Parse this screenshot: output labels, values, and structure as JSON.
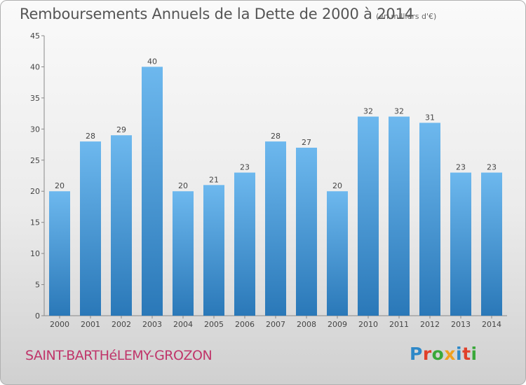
{
  "title": "Remboursements Annuels de la Dette de 2000 à 2014",
  "unit": "(en milliers d'€)",
  "commune": "SAINT-BARTHéLEMY-GROZON",
  "brand": {
    "text": "Proxiti",
    "colors": [
      "#2e88c8",
      "#e0402a",
      "#3aa83a",
      "#f0a020",
      "#2e88c8",
      "#e0402a",
      "#3aa83a"
    ]
  },
  "colors": {
    "bar_top": "#6db8ee",
    "bar_bottom": "#2a78b8",
    "commune": "#c0356a"
  },
  "chart_data": {
    "type": "bar",
    "title": "Remboursements Annuels de la Dette de 2000 à 2014",
    "xlabel": "",
    "ylabel": "",
    "categories": [
      "2000",
      "2001",
      "2002",
      "2003",
      "2004",
      "2005",
      "2006",
      "2007",
      "2008",
      "2009",
      "2010",
      "2011",
      "2012",
      "2013",
      "2014"
    ],
    "values": [
      20,
      28,
      29,
      40,
      20,
      21,
      23,
      28,
      27,
      20,
      32,
      32,
      31,
      23,
      23
    ],
    "ylim": [
      0,
      45
    ],
    "yticks": [
      0,
      5,
      10,
      15,
      20,
      25,
      30,
      35,
      40,
      45
    ],
    "grid": false,
    "legend": "none"
  }
}
